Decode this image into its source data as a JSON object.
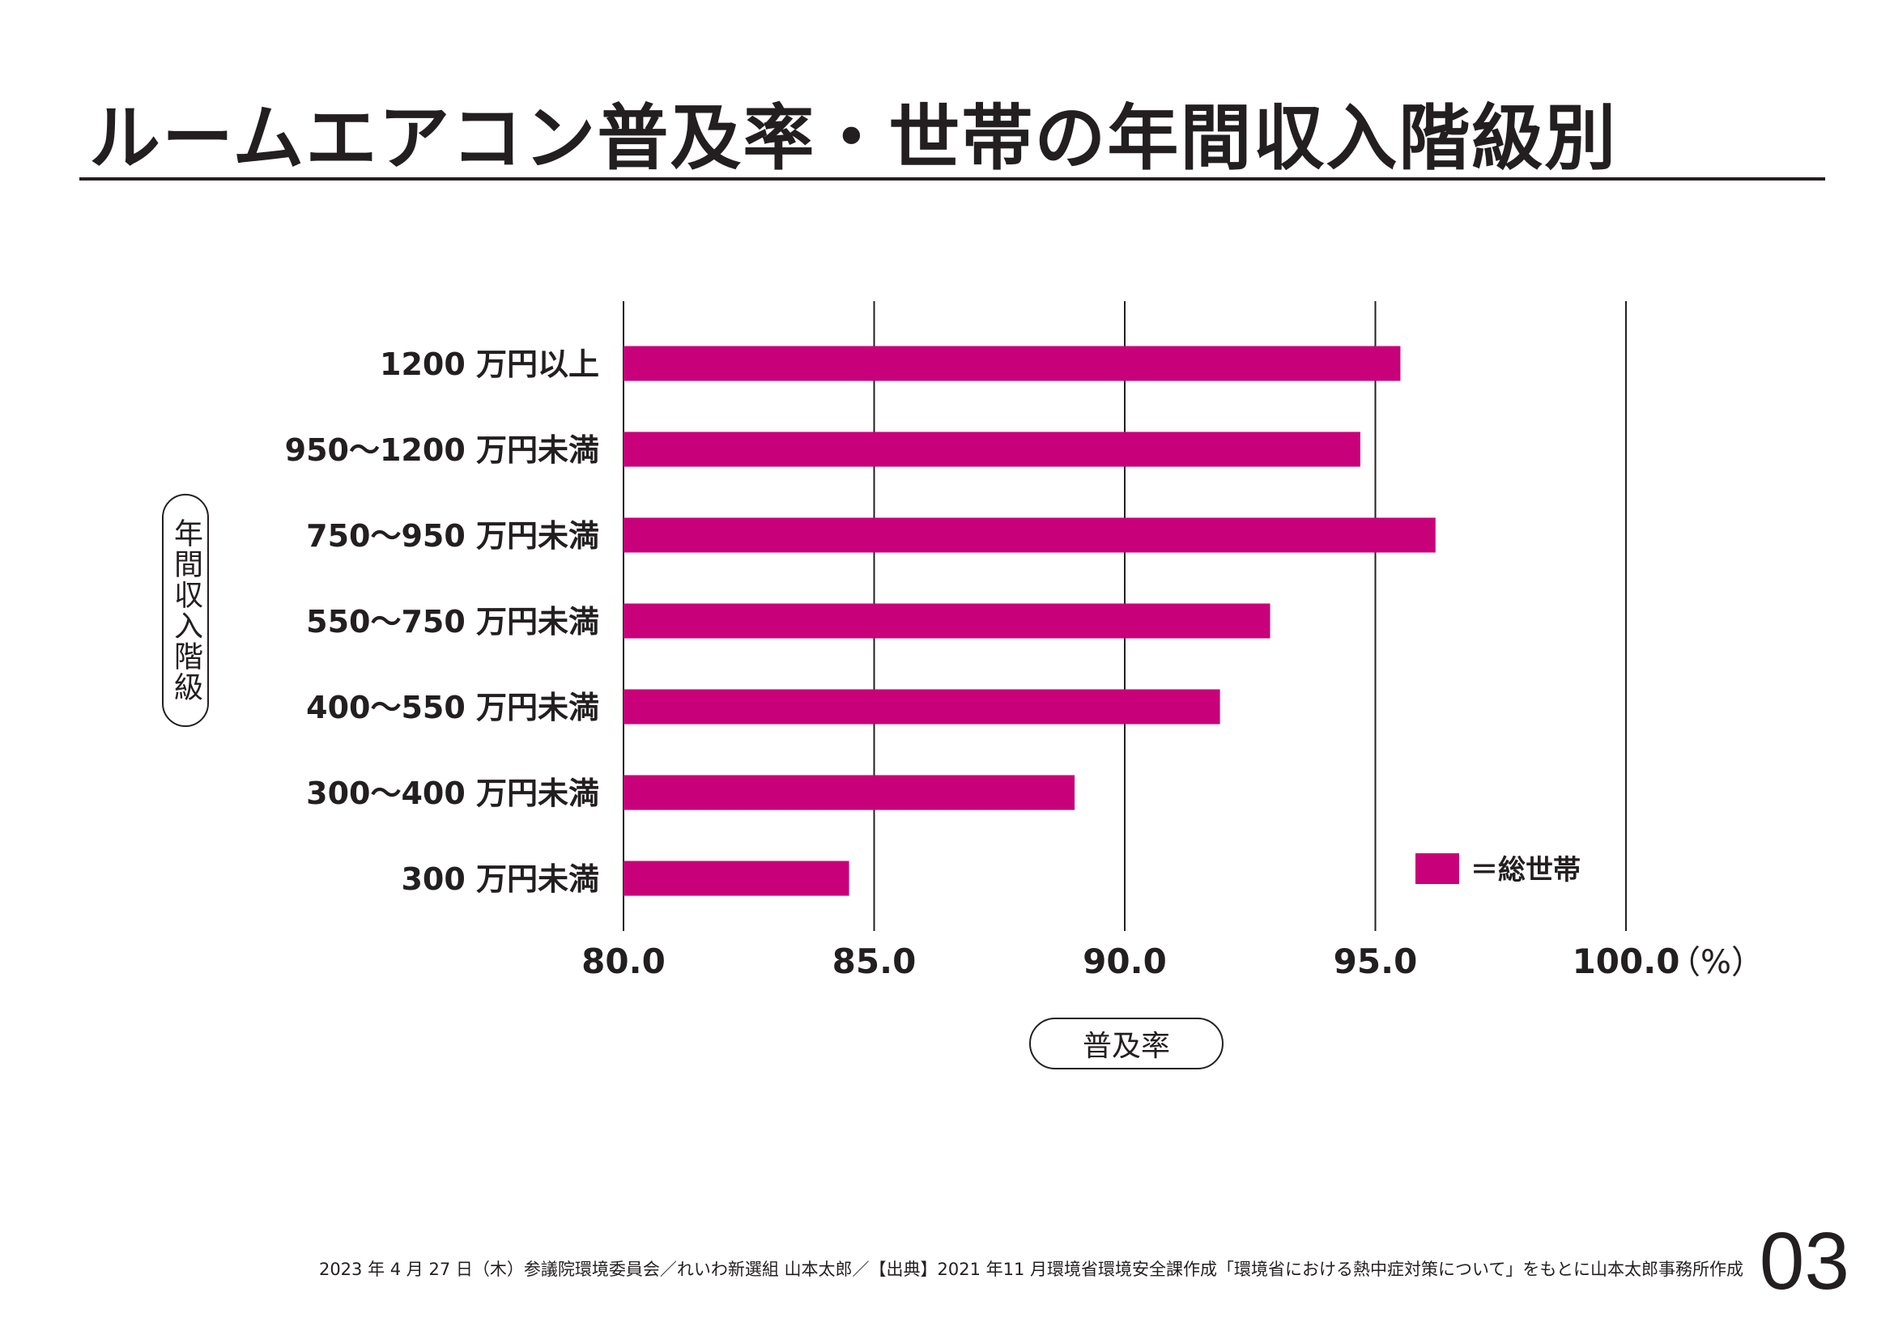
{
  "title": "ルームエアコン普及率・世帯の年間収入階級別",
  "chart_data": {
    "type": "bar",
    "orientation": "horizontal",
    "categories": [
      "1200 万円以上",
      "950〜1200 万円未満",
      "750〜950 万円未満",
      "550〜750 万円未満",
      "400〜550 万円未満",
      "300〜400 万円未満",
      "300 万円未満"
    ],
    "series": [
      {
        "name": "＝総世帯",
        "color": "#c8007a",
        "values": [
          95.5,
          94.7,
          96.2,
          92.9,
          91.9,
          89.0,
          84.5
        ]
      }
    ],
    "xlim": [
      80.0,
      100.0
    ],
    "x_ticks": [
      "80.0",
      "85.0",
      "90.0",
      "95.0",
      "100.0"
    ],
    "x_unit": "（%）",
    "xlabel": "普及率",
    "ylabel": "年間収入階級",
    "grid": "vertical",
    "legend_position": "bottom-right"
  },
  "footer": {
    "note": "2023 年 4 月 27 日（木）参議院環境委員会／れいわ新選組 山本太郎／【出典】2021 年11 月環境省環境安全課作成「環境省における熱中症対策について」をもとに山本太郎事務所作成",
    "page_number": "03"
  }
}
